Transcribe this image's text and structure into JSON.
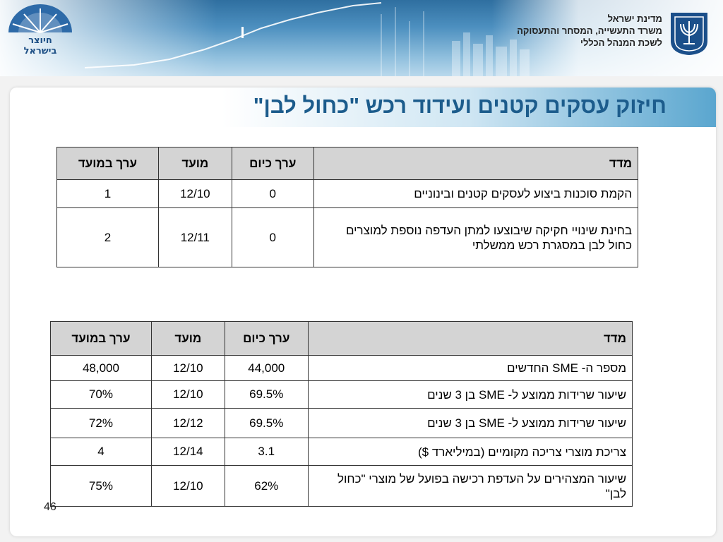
{
  "header": {
    "ministry_lines": [
      "מדינת ישראל",
      "משרד התעשייה, המסחר והתעסוקה",
      "לשכת המנהל הכללי"
    ],
    "logo_left_line1": "חיוצר",
    "logo_left_line2": "בישראל"
  },
  "title": "חיזוק עסקים קטנים ועידוד רכש \"כחול לבן\"",
  "table1": {
    "headers": {
      "metric": "מדד",
      "current": "ערך כיום",
      "deadline": "מועד",
      "target": "ערך במועד"
    },
    "rows": [
      {
        "metric": "הקמת סוכנות ביצוע לעסקים קטנים ובינוניים",
        "current": "0",
        "deadline": "12/10",
        "target": "1"
      },
      {
        "metric": "בחינת שינויי חקיקה שיבוצעו למתן העדפה נוספת למוצרים כחול לבן במסגרת רכש ממשלתי",
        "current": "0",
        "deadline": "12/11",
        "target": "2"
      }
    ]
  },
  "table2": {
    "headers": {
      "metric": "מדד",
      "current": "ערך כיום",
      "deadline": "מועד",
      "target": "ערך במועד"
    },
    "rows": [
      {
        "metric": "מספר ה- SME החדשים",
        "current": "44,000",
        "deadline": "12/10",
        "target": "48,000"
      },
      {
        "metric": "שיעור שרידות ממוצע ל- SME בן 3 שנים",
        "current": "69.5%",
        "deadline": "12/10",
        "target": "70%"
      },
      {
        "metric": "שיעור שרידות ממוצע ל- SME בן 3 שנים",
        "current": "69.5%",
        "deadline": "12/12",
        "target": "72%"
      },
      {
        "metric": "צריכת מוצרי צריכה מקומיים (במיליארד $)",
        "current": "3.1",
        "deadline": "12/14",
        "target": "4"
      },
      {
        "metric": "שיעור המצהירים על העדפת רכישה בפועל של מוצרי \"כחול לבן\"",
        "current": "62%",
        "deadline": "12/10",
        "target": "75%"
      }
    ]
  },
  "slide_number": "46"
}
